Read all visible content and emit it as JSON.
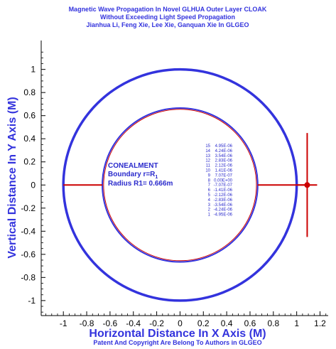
{
  "chart_data": {
    "type": "line",
    "title_lines": [
      "Magnetic Wave Propagation In Novel GLHUA Outer Layer  CLOAK",
      "Without Exceeding Light Speed Propagation",
      "Jianhua Li, Feng Xie, Lee Xie, Ganquan Xie In GLGEO"
    ],
    "xlabel": "Horizontal Distance In X Axis (M)",
    "ylabel": "Vertical Distance In Y Axis (M)",
    "footer": "Patent And Copyright Are Belong To Authors in GLGEO",
    "xlim": [
      -1.19,
      1.27
    ],
    "ylim": [
      -1.13,
      1.25
    ],
    "x_ticks": [
      -1,
      -0.8,
      -0.6,
      -0.4,
      -0.2,
      0,
      0.2,
      0.4,
      0.6,
      0.8,
      1,
      1.2
    ],
    "x_tick_labels": [
      "-1",
      "-0.8",
      "-0.6",
      "-0.4",
      "-0.2",
      "0",
      "0.2",
      "0.4",
      "0.6",
      "0.8",
      "1",
      "1.2"
    ],
    "y_ticks": [
      -1,
      -0.8,
      -0.6,
      -0.4,
      -0.2,
      0,
      0.2,
      0.4,
      0.6,
      0.8,
      1
    ],
    "y_tick_labels": [
      "-1",
      "-0.8",
      "-0.6",
      "-0.4",
      "-0.2",
      "0",
      "0.2",
      "0.4",
      "0.6",
      "0.8",
      "1"
    ],
    "circles": [
      {
        "role": "outer-boundary",
        "radius": 1.0,
        "color": "#3333dd"
      },
      {
        "role": "inner-boundary",
        "radius": 0.666,
        "color": "#3333dd"
      },
      {
        "role": "inner-wavefront",
        "radius": 0.655,
        "color": "#cc0000"
      }
    ],
    "wave_lines": [
      {
        "x": [
          -1.0,
          -0.666
        ],
        "y": [
          0,
          0
        ],
        "color": "#cc0000"
      },
      {
        "x": [
          0.666,
          1.07
        ],
        "y": [
          0,
          0
        ],
        "color": "#cc0000"
      }
    ],
    "source": {
      "x": 1.09,
      "y": 0,
      "y_span": [
        -0.45,
        0.45
      ],
      "color": "#cc0000"
    },
    "annotation": {
      "line1": "CONEALMENT",
      "line2": "Boundary r=R",
      "line2_sub": "1",
      "line3": "Radius R1= 0.666m"
    },
    "legend": {
      "levels": [
        "15",
        "14",
        "13",
        "12",
        "11",
        "10",
        "9",
        "8",
        "7",
        "6",
        "5",
        "4",
        "3",
        "2",
        "1"
      ],
      "values": [
        "4.95E-06",
        "4.24E-06",
        "3.54E-06",
        "2.83E-06",
        "2.12E-06",
        "1.41E-06",
        "7.07E-07",
        "0.00E+00",
        "-7.07E-07",
        "-1.41E-06",
        "-2.12E-06",
        "-2.83E-06",
        "-3.54E-06",
        "-4.24E-06",
        "-4.95E-06"
      ]
    },
    "colors": {
      "text": "#3333dd",
      "wave": "#cc0000",
      "boundary": "#3333dd"
    }
  }
}
